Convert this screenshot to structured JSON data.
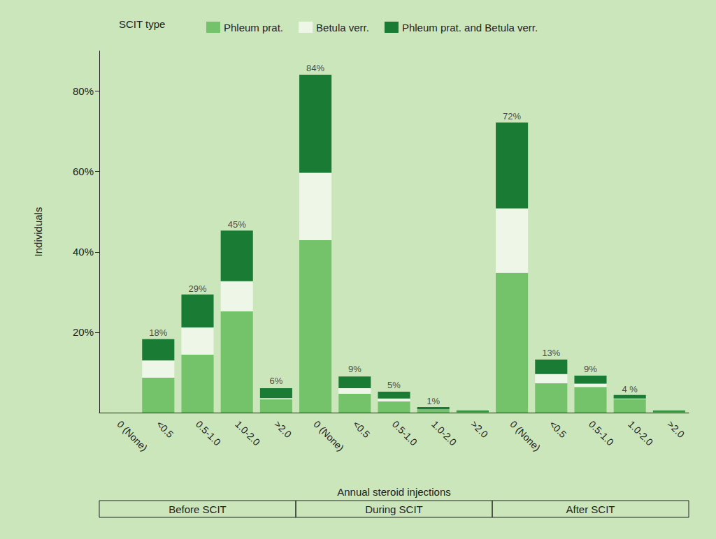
{
  "chart_data": {
    "type": "bar",
    "stacked": true,
    "legend_title": "SCIT type",
    "legend": "top",
    "grid": false,
    "x_label": "Annual steroid injections",
    "y_label": "Individuals",
    "categories": [
      "0 (None)",
      "<0.5",
      "0.5-1.0",
      "1.0-2.0",
      ">2.0",
      "0 (None)",
      "<0.5",
      "0.5-1.0",
      "1.0-2.0",
      ">2.0",
      "0 (None)",
      "<0.5",
      "0.5-1.0",
      "1.0-2.0",
      ">2.0"
    ],
    "groups": [
      {
        "name": "Before SCIT",
        "span": 5
      },
      {
        "name": "During SCIT",
        "span": 5
      },
      {
        "name": "After SCIT",
        "span": 5
      }
    ],
    "series": [
      {
        "name": "Phleum prat.",
        "color": "#74c26a",
        "values": [
          0,
          8.7,
          14.4,
          25.2,
          3.3,
          42.9,
          4.7,
          2.8,
          0.7,
          0.2,
          34.8,
          7.3,
          6.4,
          3.4,
          0.2
        ]
      },
      {
        "name": "Betula verr.",
        "color": "#eef6e8",
        "values": [
          0,
          4.3,
          6.8,
          7.5,
          0.3,
          16.8,
          1.4,
          0.7,
          0.1,
          0,
          16.0,
          2.3,
          0.8,
          0.1,
          0
        ]
      },
      {
        "name": "Phleum prat. and Betula verr.",
        "color": "#1a7b34",
        "values": [
          0,
          5.3,
          8.2,
          12.6,
          2.5,
          24.4,
          2.9,
          1.7,
          0.6,
          0.3,
          21.4,
          3.6,
          2.0,
          0.9,
          0.3
        ]
      }
    ],
    "totals": [
      null,
      18,
      29,
      45,
      6,
      84,
      9,
      5,
      1,
      null,
      72,
      13,
      9,
      4,
      null
    ],
    "total_labels": [
      null,
      "18%",
      "29%",
      "45%",
      "6%",
      "84%",
      "9%",
      "5%",
      "1%",
      null,
      "72%",
      "13%",
      "9%",
      "4 %",
      null
    ],
    "ylim": [
      0,
      90
    ],
    "yticks": [
      {
        "value": 20,
        "label": "20%"
      },
      {
        "value": 40,
        "label": "40%"
      },
      {
        "value": 60,
        "label": "60%"
      },
      {
        "value": 80,
        "label": "80%"
      }
    ]
  }
}
